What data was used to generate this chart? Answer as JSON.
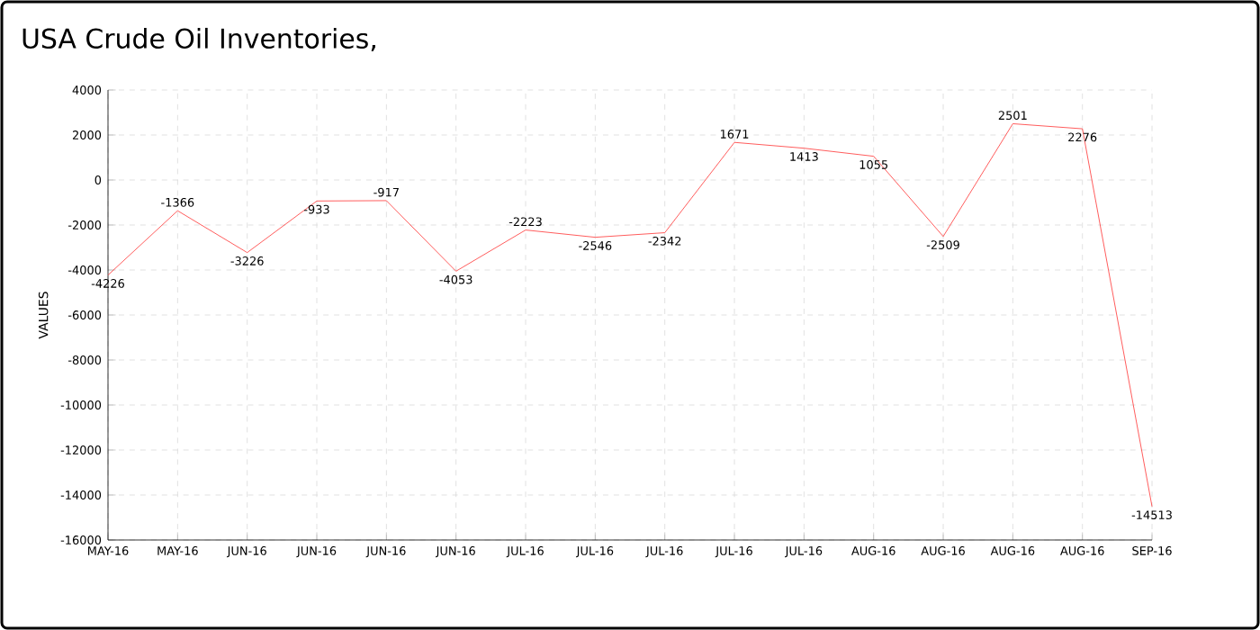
{
  "chart_data": {
    "type": "line",
    "title": "USA Crude Oil Inventories,",
    "ylabel": "VALUES",
    "categories": [
      "MAY-16",
      "MAY-16",
      "JUN-16",
      "JUN-16",
      "JUN-16",
      "JUN-16",
      "JUL-16",
      "JUL-16",
      "JUL-16",
      "JUL-16",
      "JUL-16",
      "AUG-16",
      "AUG-16",
      "AUG-16",
      "AUG-16",
      "SEP-16"
    ],
    "values": [
      -4226,
      -1366,
      -3226,
      -933,
      -917,
      -4053,
      -2223,
      -2546,
      -2342,
      1671,
      1413,
      1055,
      -2509,
      2501,
      2276,
      -14513
    ],
    "color": "#ff3333",
    "ylim": [
      -16000,
      4000
    ],
    "yticks": [
      -16000,
      -14000,
      -12000,
      -10000,
      -8000,
      -6000,
      -4000,
      -2000,
      0,
      2000,
      4000
    ],
    "grid": true,
    "data_labels": true,
    "marker": "none",
    "line_style": "solid"
  }
}
